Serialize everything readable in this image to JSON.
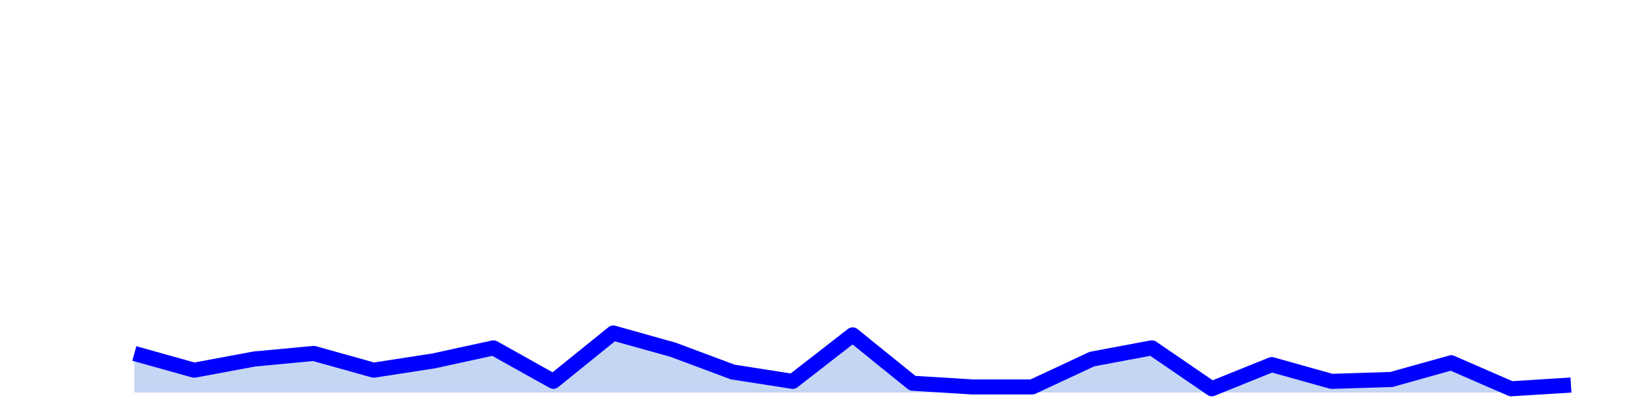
{
  "chart_data": {
    "type": "area",
    "x": [
      0,
      1,
      2,
      3,
      4,
      5,
      6,
      7,
      8,
      9,
      10,
      11,
      12,
      13,
      14,
      15,
      16,
      17,
      18,
      19,
      20,
      21,
      22,
      23,
      24
    ],
    "series": [
      {
        "values": [
          10.5,
          6.0,
          9.0,
          10.5,
          6.0,
          8.5,
          12.0,
          3.0,
          16.0,
          11.5,
          5.5,
          3.0,
          15.5,
          2.5,
          1.5,
          1.5,
          9.0,
          12.0,
          1.0,
          7.5,
          3.0,
          3.5,
          8.0,
          1.0,
          2.0
        ],
        "line_color": "#0000ff",
        "fill_color": "#c5d6f5"
      }
    ],
    "ylim": [
      0,
      100
    ],
    "grid": false,
    "axes_visible": false,
    "legend": "none"
  }
}
